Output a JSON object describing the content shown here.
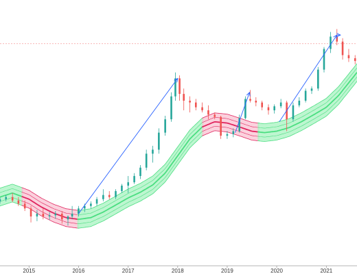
{
  "chart_data": {
    "type": "candlestick",
    "x_axis": {
      "type": "time",
      "range": [
        "2014-06-01",
        "2021-08-15"
      ],
      "tick_labels": [
        "2015",
        "2016",
        "2017",
        "2018",
        "2019",
        "2020",
        "2021"
      ],
      "tick_dates": [
        "2015-01-01",
        "2016-01-01",
        "2017-01-01",
        "2018-01-01",
        "2019-01-01",
        "2020-01-01",
        "2021-01-01"
      ]
    },
    "y_axis": {
      "scale": "log",
      "labels_visible": false,
      "range": [
        0.5,
        35
      ]
    },
    "grid": false,
    "legend": "none",
    "colors": {
      "up": "#26a69a",
      "down": "#ef5350",
      "band_green": "#4ade80",
      "band_green_fill": "#a7f3c0",
      "band_red": "#e0245e",
      "band_red_fill": "#f9c2d1",
      "arrow": "#2962ff",
      "reference_line": "#ef5350",
      "axis": "#9e9e9e"
    },
    "reference_line": {
      "value": 17.4,
      "style": "dashed"
    },
    "band": {
      "points": [
        [
          "2014-06-01",
          1.5
        ],
        [
          "2014-09-01",
          1.6
        ],
        [
          "2015-01-01",
          1.45
        ],
        [
          "2015-04-01",
          1.28
        ],
        [
          "2015-07-01",
          1.16
        ],
        [
          "2015-10-01",
          1.08
        ],
        [
          "2016-01-01",
          1.05
        ],
        [
          "2016-04-01",
          1.08
        ],
        [
          "2016-07-01",
          1.18
        ],
        [
          "2016-10-01",
          1.32
        ],
        [
          "2017-01-01",
          1.48
        ],
        [
          "2017-04-01",
          1.62
        ],
        [
          "2017-07-01",
          1.82
        ],
        [
          "2017-10-01",
          2.2
        ],
        [
          "2018-01-01",
          2.9
        ],
        [
          "2018-04-01",
          3.8
        ],
        [
          "2018-07-01",
          4.6
        ],
        [
          "2018-10-01",
          5.0
        ],
        [
          "2019-01-01",
          4.9
        ],
        [
          "2019-04-01",
          4.6
        ],
        [
          "2019-07-01",
          4.3
        ],
        [
          "2019-10-01",
          4.2
        ],
        [
          "2020-01-01",
          4.3
        ],
        [
          "2020-04-01",
          4.55
        ],
        [
          "2020-07-01",
          5.0
        ],
        [
          "2020-10-01",
          5.6
        ],
        [
          "2021-01-01",
          6.3
        ],
        [
          "2021-04-01",
          7.6
        ],
        [
          "2021-08-15",
          11.0
        ]
      ],
      "red_segments": [
        [
          "2014-11-15",
          "2016-01-01"
        ],
        [
          "2018-07-01",
          "2019-08-15"
        ]
      ]
    },
    "arrows": [
      {
        "from": [
          "2016-01-01",
          1.15
        ],
        "to": [
          "2018-01-01",
          10.0
        ]
      },
      {
        "from": [
          "2019-03-01",
          4.2
        ],
        "to": [
          "2019-06-15",
          8.0
        ]
      },
      {
        "from": [
          "2020-01-20",
          5.0
        ],
        "to": [
          "2021-03-20",
          20.0
        ]
      },
      {
        "from": [
          "2021-03-20",
          20.0
        ],
        "to": [
          "2021-04-15",
          20.0
        ]
      }
    ],
    "series": [
      {
        "type": "ohlc",
        "points": [
          [
            "2014-06-01",
            1.4,
            1.5,
            1.35,
            1.45
          ],
          [
            "2014-07-15",
            1.45,
            1.55,
            1.4,
            1.5
          ],
          [
            "2014-09-01",
            1.5,
            1.6,
            1.38,
            1.42
          ],
          [
            "2014-10-15",
            1.42,
            1.5,
            1.3,
            1.35
          ],
          [
            "2014-12-01",
            1.35,
            1.42,
            1.2,
            1.25
          ],
          [
            "2015-01-15",
            1.25,
            1.3,
            1.0,
            1.1
          ],
          [
            "2015-03-01",
            1.1,
            1.22,
            1.02,
            1.15
          ],
          [
            "2015-04-15",
            1.15,
            1.25,
            1.05,
            1.1
          ],
          [
            "2015-06-01",
            1.1,
            1.18,
            1.04,
            1.12
          ],
          [
            "2015-07-15",
            1.12,
            1.2,
            1.06,
            1.15
          ],
          [
            "2015-09-01",
            1.15,
            1.2,
            0.98,
            1.05
          ],
          [
            "2015-10-15",
            1.05,
            1.12,
            0.95,
            1.1
          ],
          [
            "2015-11-15",
            1.1,
            1.3,
            1.05,
            1.15
          ],
          [
            "2016-01-01",
            1.15,
            1.3,
            1.1,
            1.25
          ],
          [
            "2016-02-15",
            1.25,
            1.35,
            1.18,
            1.3
          ],
          [
            "2016-04-01",
            1.3,
            1.4,
            1.25,
            1.35
          ],
          [
            "2016-05-15",
            1.35,
            1.5,
            1.3,
            1.45
          ],
          [
            "2016-07-01",
            1.45,
            1.7,
            1.4,
            1.55
          ],
          [
            "2016-08-15",
            1.55,
            1.65,
            1.45,
            1.5
          ],
          [
            "2016-10-01",
            1.5,
            1.7,
            1.45,
            1.65
          ],
          [
            "2016-11-15",
            1.65,
            1.85,
            1.6,
            1.8
          ],
          [
            "2017-01-01",
            1.8,
            2.1,
            1.6,
            1.9
          ],
          [
            "2017-02-15",
            1.9,
            2.2,
            1.85,
            2.1
          ],
          [
            "2017-04-01",
            2.1,
            2.5,
            2.0,
            2.4
          ],
          [
            "2017-05-15",
            2.4,
            3.2,
            2.3,
            3.0
          ],
          [
            "2017-07-01",
            3.0,
            3.4,
            2.6,
            3.2
          ],
          [
            "2017-08-15",
            3.2,
            4.5,
            3.0,
            4.2
          ],
          [
            "2017-10-01",
            4.2,
            5.5,
            4.0,
            5.2
          ],
          [
            "2017-11-15",
            5.2,
            8.0,
            5.0,
            7.5
          ],
          [
            "2017-12-15",
            7.5,
            11.0,
            7.0,
            10.0
          ],
          [
            "2018-01-15",
            10.0,
            10.5,
            7.0,
            7.8
          ],
          [
            "2018-02-15",
            7.8,
            8.5,
            6.0,
            7.0
          ],
          [
            "2018-04-01",
            7.0,
            7.5,
            5.8,
            6.8
          ],
          [
            "2018-05-15",
            6.8,
            7.2,
            6.0,
            6.3
          ],
          [
            "2018-07-01",
            6.3,
            6.8,
            5.8,
            6.0
          ],
          [
            "2018-08-15",
            6.0,
            6.5,
            5.2,
            5.6
          ],
          [
            "2018-10-01",
            5.6,
            5.8,
            5.2,
            5.4
          ],
          [
            "2018-11-15",
            5.4,
            5.5,
            3.8,
            4.0
          ],
          [
            "2019-01-01",
            4.0,
            4.3,
            3.8,
            4.1
          ],
          [
            "2019-02-15",
            4.1,
            4.5,
            3.9,
            4.3
          ],
          [
            "2019-04-01",
            4.3,
            5.6,
            4.2,
            5.3
          ],
          [
            "2019-05-15",
            5.3,
            7.5,
            5.2,
            7.2
          ],
          [
            "2019-06-20",
            7.2,
            8.3,
            6.8,
            7.0
          ],
          [
            "2019-08-01",
            7.0,
            7.4,
            6.4,
            6.8
          ],
          [
            "2019-09-15",
            6.8,
            7.0,
            6.0,
            6.3
          ],
          [
            "2019-11-01",
            6.3,
            6.6,
            5.6,
            6.0
          ],
          [
            "2019-12-15",
            6.0,
            6.6,
            5.7,
            6.4
          ],
          [
            "2020-02-01",
            6.4,
            7.2,
            6.2,
            6.8
          ],
          [
            "2020-03-15",
            6.8,
            7.0,
            4.3,
            5.2
          ],
          [
            "2020-05-01",
            5.2,
            6.8,
            5.0,
            6.5
          ],
          [
            "2020-06-15",
            6.5,
            7.4,
            6.3,
            7.0
          ],
          [
            "2020-08-01",
            7.0,
            8.5,
            6.8,
            8.2
          ],
          [
            "2020-09-15",
            8.2,
            8.8,
            7.8,
            8.5
          ],
          [
            "2020-11-01",
            8.5,
            12.0,
            8.2,
            11.5
          ],
          [
            "2020-12-15",
            11.5,
            16.5,
            11.0,
            16.0
          ],
          [
            "2021-02-01",
            16.0,
            21.0,
            15.0,
            19.5
          ],
          [
            "2021-03-20",
            19.5,
            22.0,
            17.0,
            18.0
          ],
          [
            "2021-05-01",
            18.0,
            19.0,
            13.5,
            14.5
          ],
          [
            "2021-06-15",
            14.5,
            16.0,
            13.0,
            13.8
          ],
          [
            "2021-08-01",
            13.8,
            14.5,
            12.5,
            13.2
          ]
        ]
      }
    ]
  }
}
